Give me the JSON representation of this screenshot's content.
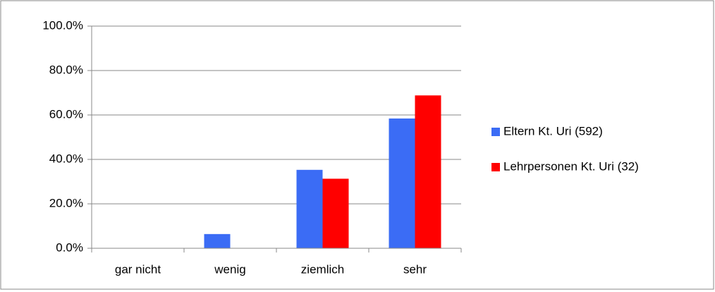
{
  "chart_data": {
    "type": "bar",
    "categories": [
      "gar nicht",
      "wenig",
      "ziemlich",
      "sehr"
    ],
    "series": [
      {
        "name": "Eltern Kt. Uri (592)",
        "color": "#3b6cf5",
        "values": [
          0,
          6.4,
          35.3,
          58.4
        ]
      },
      {
        "name": "Lehrpersonen Kt. Uri (32)",
        "color": "#ff0000",
        "values": [
          0,
          0,
          31.3,
          68.8
        ]
      }
    ],
    "ylim": [
      0,
      100
    ],
    "yticks": [
      {
        "value": 0,
        "label": "0.0%"
      },
      {
        "value": 20,
        "label": "20.0%"
      },
      {
        "value": 40,
        "label": "40.0%"
      },
      {
        "value": 60,
        "label": "60.0%"
      },
      {
        "value": 80,
        "label": "80.0%"
      },
      {
        "value": 100,
        "label": "100.0%"
      }
    ],
    "grid": true,
    "legend": "right"
  }
}
